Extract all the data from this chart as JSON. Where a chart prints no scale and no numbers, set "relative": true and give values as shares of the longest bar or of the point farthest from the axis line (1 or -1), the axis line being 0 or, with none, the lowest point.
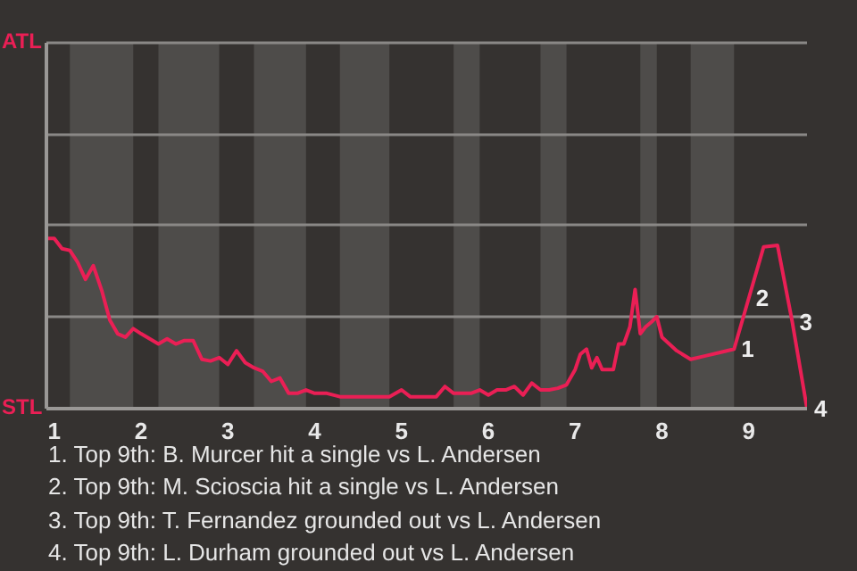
{
  "chart_data": {
    "type": "line",
    "relative": true,
    "x": [
      0.91,
      1,
      1.09,
      1.18,
      1.27,
      1.36,
      1.45,
      1.55,
      1.64,
      1.73,
      1.82,
      1.91,
      2,
      2.1,
      2.2,
      2.3,
      2.4,
      2.5,
      2.6,
      2.7,
      2.8,
      2.9,
      3,
      3.1,
      3.2,
      3.3,
      3.4,
      3.5,
      3.6,
      3.7,
      3.8,
      3.9,
      4,
      4.14,
      4.29,
      4.43,
      4.57,
      4.71,
      4.86,
      5,
      5.1,
      5.2,
      5.3,
      5.4,
      5.5,
      5.6,
      5.7,
      5.8,
      5.9,
      6,
      6.1,
      6.2,
      6.3,
      6.4,
      6.5,
      6.6,
      6.7,
      6.8,
      6.9,
      7,
      7.06,
      7.13,
      7.19,
      7.25,
      7.31,
      7.38,
      7.44,
      7.5,
      7.56,
      7.63,
      7.69,
      7.75,
      7.81,
      7.88,
      7.94,
      8,
      8.17,
      8.33,
      8.5,
      8.67,
      8.83,
      9,
      9.17,
      9.33,
      9.5,
      9.67
    ],
    "series": [
      {
        "color": "#ea1f55",
        "values": [
          1,
          1,
          0.94,
          0.93,
          0.86,
          0.76,
          0.84,
          0.69,
          0.52,
          0.44,
          0.42,
          0.47,
          0.44,
          0.41,
          0.38,
          0.41,
          0.38,
          0.4,
          0.4,
          0.29,
          0.28,
          0.3,
          0.26,
          0.34,
          0.27,
          0.24,
          0.22,
          0.16,
          0.18,
          0.09,
          0.09,
          0.11,
          0.09,
          0.09,
          0.07,
          0.07,
          0.07,
          0.07,
          0.07,
          0.11,
          0.07,
          0.07,
          0.07,
          0.07,
          0.13,
          0.09,
          0.09,
          0.09,
          0.11,
          0.08,
          0.11,
          0.11,
          0.13,
          0.08,
          0.15,
          0.11,
          0.11,
          0.12,
          0.14,
          0.23,
          0.32,
          0.35,
          0.24,
          0.3,
          0.23,
          0.23,
          0.23,
          0.38,
          0.38,
          0.48,
          0.7,
          0.44,
          0.48,
          0.51,
          0.54,
          0.42,
          0.34,
          0.29,
          0.31,
          0.33,
          0.35,
          0.65,
          0.95,
          0.96,
          0.51,
          0
        ]
      }
    ],
    "xlim": [
      0.91,
      9.67
    ],
    "xticks": [
      1,
      2,
      3,
      4,
      5,
      6,
      7,
      8,
      9
    ],
    "ref_lines": [
      {
        "axis": "y",
        "value": 0.54,
        "color": "#8a8886"
      },
      {
        "axis": "y",
        "value": 1.08,
        "color": "#8a8886"
      },
      {
        "axis": "y",
        "value": 1.61,
        "color": "#8a8886"
      },
      {
        "axis": "y",
        "value": 2.15,
        "color": "#8a8886"
      }
    ],
    "bands": [
      {
        "axis": "x",
        "from": 1.18,
        "to": 1.91,
        "color": "#4e4c4a"
      },
      {
        "axis": "x",
        "from": 2.2,
        "to": 2.9,
        "color": "#4e4c4a"
      },
      {
        "axis": "x",
        "from": 3.3,
        "to": 3.9,
        "color": "#4e4c4a"
      },
      {
        "axis": "x",
        "from": 4.29,
        "to": 4.86,
        "color": "#4e4c4a"
      },
      {
        "axis": "x",
        "from": 5.6,
        "to": 5.9,
        "color": "#4e4c4a"
      },
      {
        "axis": "x",
        "from": 6.6,
        "to": 6.9,
        "color": "#4e4c4a"
      },
      {
        "axis": "x",
        "from": 7.75,
        "to": 7.94,
        "color": "#4e4c4a"
      },
      {
        "axis": "x",
        "from": 8.33,
        "to": 8.83,
        "color": "#4e4c4a"
      }
    ],
    "annotations": [
      "ATL",
      "STL",
      {
        "text": "1",
        "x": 8.83,
        "y": 0.35
      },
      {
        "text": "2",
        "x": 9,
        "y": 0.65
      },
      {
        "text": "3",
        "x": 9.5,
        "y": 0.51
      },
      {
        "text": "4",
        "x": 9.67,
        "y": 0
      },
      "1. Top 9th: B. Murcer hit a single vs L. Andersen",
      "2. Top 9th: M. Scioscia hit a single vs L. Andersen",
      "3. Top 9th: T. Fernandez grounded out vs L. Andersen",
      "4. Top 9th: L. Durham grounded out vs L. Andersen"
    ]
  }
}
